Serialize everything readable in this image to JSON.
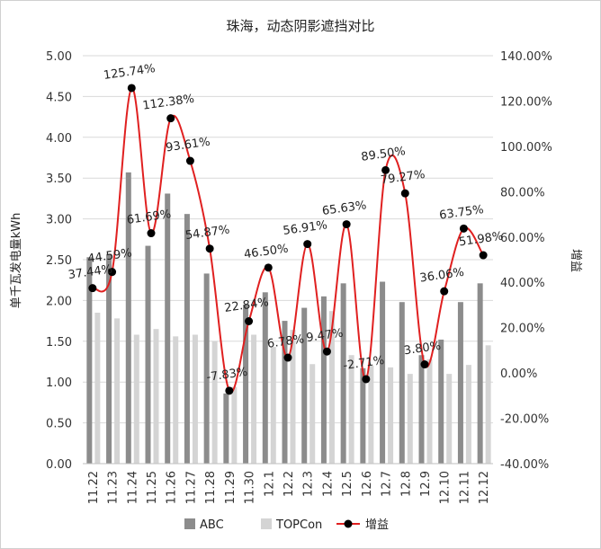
{
  "chart_data": {
    "type": "bar",
    "title": "珠海，动态阴影遮挡对比",
    "ylabel": "单千瓦发电量kWh",
    "y2label": "增益",
    "categories": [
      "11.22",
      "11.23",
      "11.24",
      "11.25",
      "11.26",
      "11.27",
      "11.28",
      "11.29",
      "11.30",
      "12.1",
      "12.2",
      "12.3",
      "12.4",
      "12.5",
      "12.6",
      "12.7",
      "12.8",
      "12.9",
      "12.10",
      "12.11",
      "12.12"
    ],
    "ylim": [
      0,
      5
    ],
    "y2lim": [
      -40,
      140
    ],
    "y_ticks": [
      "0.00",
      "0.50",
      "1.00",
      "1.50",
      "2.00",
      "2.50",
      "3.00",
      "3.50",
      "4.00",
      "4.50",
      "5.00"
    ],
    "y2_ticks": [
      "-40.00%",
      "-20.00%",
      "0.00%",
      "20.00%",
      "40.00%",
      "60.00%",
      "80.00%",
      "100.00%",
      "120.00%",
      "140.00%"
    ],
    "series": [
      {
        "name": "ABC",
        "kind": "bar",
        "axis": "left",
        "color": "#8c8c8c",
        "values": [
          2.53,
          2.57,
          3.57,
          2.67,
          3.31,
          3.06,
          2.33,
          0.86,
          1.95,
          2.1,
          1.75,
          1.91,
          2.05,
          2.21,
          1.17,
          2.23,
          1.98,
          1.33,
          1.52,
          1.98,
          2.21
        ]
      },
      {
        "name": "TOPCon",
        "kind": "bar",
        "axis": "left",
        "color": "#d4d4d4",
        "values": [
          1.85,
          1.78,
          1.58,
          1.65,
          1.56,
          1.58,
          1.5,
          0.94,
          1.58,
          1.43,
          1.64,
          1.22,
          1.87,
          1.33,
          1.2,
          1.18,
          1.1,
          1.28,
          1.1,
          1.21,
          1.45
        ]
      },
      {
        "name": "增益",
        "kind": "line",
        "axis": "right",
        "color": "#e02020",
        "marker_color": "#000000",
        "values": [
          37.44,
          44.59,
          125.74,
          61.69,
          112.38,
          93.61,
          54.87,
          -7.83,
          22.84,
          46.5,
          6.78,
          56.91,
          9.47,
          65.63,
          -2.71,
          89.5,
          79.27,
          3.8,
          36.06,
          63.75,
          51.98
        ],
        "labels": [
          "37.44%",
          "44.59%",
          "125.74%",
          "61.69%",
          "112.38%",
          "93.61%",
          "54.87%",
          "-7.83%",
          "22.84%",
          "46.50%",
          "6.78%",
          "56.91%",
          "9.47%",
          "65.63%",
          "-2.71%",
          "89.50%",
          "79.27%",
          "3.80%",
          "36.06%",
          "63.75%",
          "51.98%"
        ]
      }
    ],
    "grid": true,
    "legend_position": "bottom"
  }
}
